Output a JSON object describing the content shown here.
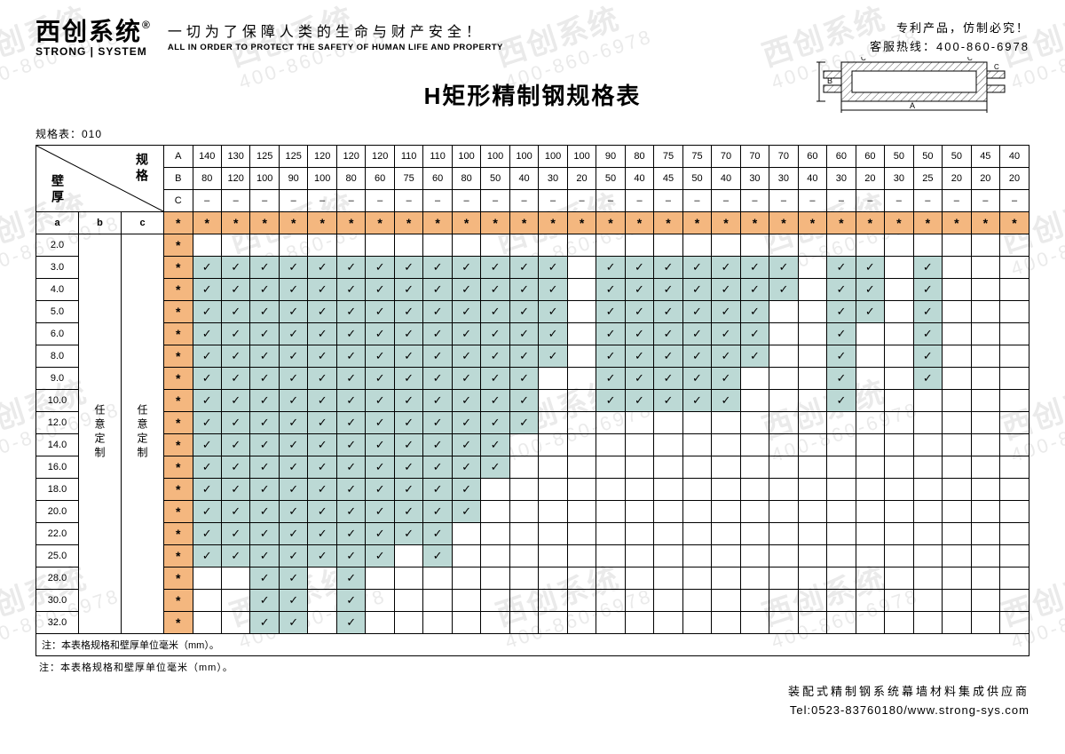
{
  "watermark": {
    "line1": "西创系统",
    "line2": "400-860-6978"
  },
  "header": {
    "brand_cn": "西创系统",
    "brand_reg": "®",
    "brand_en": "STRONG | SYSTEM",
    "slogan_cn": "一切为了保障人类的生命与财产安全！",
    "slogan_en": "ALL IN ORDER TO PROTECT THE SAFETY OF HUMAN LIFE AND PROPERTY",
    "right1": "专利产品，仿制必究！",
    "right2": "客服热线：400-860-6978"
  },
  "title": "H矩形精制钢规格表",
  "spec_no": "规格表：010",
  "diagram_labels": {
    "A": "A",
    "B": "B",
    "C": "C"
  },
  "table": {
    "corner_spec": "规格",
    "corner_thk": "壁厚",
    "abc_row_labels": [
      "A",
      "B",
      "C"
    ],
    "abc_col_header": [
      "a",
      "b",
      "c"
    ],
    "b_col_text": "任意定制",
    "c_col_text": "任意定制",
    "A_row": [
      "140",
      "130",
      "125",
      "125",
      "120",
      "120",
      "120",
      "110",
      "110",
      "100",
      "100",
      "100",
      "100",
      "100",
      "90",
      "80",
      "75",
      "75",
      "70",
      "70",
      "70",
      "60",
      "60",
      "60",
      "50",
      "50",
      "50",
      "45",
      "40"
    ],
    "B_row": [
      "80",
      "120",
      "100",
      "90",
      "100",
      "80",
      "60",
      "75",
      "60",
      "80",
      "50",
      "40",
      "30",
      "20",
      "50",
      "40",
      "45",
      "50",
      "40",
      "30",
      "30",
      "40",
      "30",
      "20",
      "30",
      "25",
      "20",
      "20",
      "20"
    ],
    "C_row": [
      "–",
      "–",
      "–",
      "–",
      "–",
      "–",
      "–",
      "–",
      "–",
      "–",
      "–",
      "–",
      "–",
      "–",
      "–",
      "–",
      "–",
      "–",
      "–",
      "–",
      "–",
      "–",
      "–",
      "–",
      "–",
      "–",
      "–",
      "–",
      "–"
    ],
    "thicknesses": [
      "2.0",
      "3.0",
      "4.0",
      "5.0",
      "6.0",
      "8.0",
      "9.0",
      "10.0",
      "12.0",
      "14.0",
      "16.0",
      "18.0",
      "20.0",
      "22.0",
      "25.0",
      "28.0",
      "30.0",
      "32.0"
    ],
    "checks": {
      "3.0": [
        1,
        1,
        1,
        1,
        1,
        1,
        1,
        1,
        1,
        1,
        1,
        1,
        1,
        0,
        1,
        1,
        1,
        1,
        1,
        1,
        1,
        0,
        1,
        1,
        0,
        1,
        0,
        0,
        0
      ],
      "4.0": [
        1,
        1,
        1,
        1,
        1,
        1,
        1,
        1,
        1,
        1,
        1,
        1,
        1,
        0,
        1,
        1,
        1,
        1,
        1,
        1,
        1,
        0,
        1,
        1,
        0,
        1,
        0,
        0,
        0
      ],
      "5.0": [
        1,
        1,
        1,
        1,
        1,
        1,
        1,
        1,
        1,
        1,
        1,
        1,
        1,
        0,
        1,
        1,
        1,
        1,
        1,
        1,
        0,
        0,
        1,
        1,
        0,
        1,
        0,
        0,
        0
      ],
      "6.0": [
        1,
        1,
        1,
        1,
        1,
        1,
        1,
        1,
        1,
        1,
        1,
        1,
        1,
        0,
        1,
        1,
        1,
        1,
        1,
        1,
        0,
        0,
        1,
        0,
        0,
        1,
        0,
        0,
        0
      ],
      "8.0": [
        1,
        1,
        1,
        1,
        1,
        1,
        1,
        1,
        1,
        1,
        1,
        1,
        1,
        0,
        1,
        1,
        1,
        1,
        1,
        1,
        0,
        0,
        1,
        0,
        0,
        1,
        0,
        0,
        0
      ],
      "9.0": [
        1,
        1,
        1,
        1,
        1,
        1,
        1,
        1,
        1,
        1,
        1,
        1,
        0,
        0,
        1,
        1,
        1,
        1,
        1,
        0,
        0,
        0,
        1,
        0,
        0,
        1,
        0,
        0,
        0
      ],
      "10.0": [
        1,
        1,
        1,
        1,
        1,
        1,
        1,
        1,
        1,
        1,
        1,
        1,
        0,
        0,
        1,
        1,
        1,
        1,
        1,
        0,
        0,
        0,
        1,
        0,
        0,
        0,
        0,
        0,
        0
      ],
      "12.0": [
        1,
        1,
        1,
        1,
        1,
        1,
        1,
        1,
        1,
        1,
        1,
        1,
        0,
        0,
        0,
        0,
        0,
        0,
        0,
        0,
        0,
        0,
        0,
        0,
        0,
        0,
        0,
        0,
        0
      ],
      "14.0": [
        1,
        1,
        1,
        1,
        1,
        1,
        1,
        1,
        1,
        1,
        1,
        0,
        0,
        0,
        0,
        0,
        0,
        0,
        0,
        0,
        0,
        0,
        0,
        0,
        0,
        0,
        0,
        0,
        0
      ],
      "16.0": [
        1,
        1,
        1,
        1,
        1,
        1,
        1,
        1,
        1,
        1,
        1,
        0,
        0,
        0,
        0,
        0,
        0,
        0,
        0,
        0,
        0,
        0,
        0,
        0,
        0,
        0,
        0,
        0,
        0
      ],
      "18.0": [
        1,
        1,
        1,
        1,
        1,
        1,
        1,
        1,
        1,
        1,
        0,
        0,
        0,
        0,
        0,
        0,
        0,
        0,
        0,
        0,
        0,
        0,
        0,
        0,
        0,
        0,
        0,
        0,
        0
      ],
      "20.0": [
        1,
        1,
        1,
        1,
        1,
        1,
        1,
        1,
        1,
        1,
        0,
        0,
        0,
        0,
        0,
        0,
        0,
        0,
        0,
        0,
        0,
        0,
        0,
        0,
        0,
        0,
        0,
        0,
        0
      ],
      "22.0": [
        1,
        1,
        1,
        1,
        1,
        1,
        1,
        1,
        1,
        0,
        0,
        0,
        0,
        0,
        0,
        0,
        0,
        0,
        0,
        0,
        0,
        0,
        0,
        0,
        0,
        0,
        0,
        0,
        0
      ],
      "25.0": [
        1,
        1,
        1,
        1,
        1,
        1,
        1,
        0,
        1,
        0,
        0,
        0,
        0,
        0,
        0,
        0,
        0,
        0,
        0,
        0,
        0,
        0,
        0,
        0,
        0,
        0,
        0,
        0,
        0
      ],
      "28.0": [
        0,
        0,
        1,
        1,
        0,
        1,
        0,
        0,
        0,
        0,
        0,
        0,
        0,
        0,
        0,
        0,
        0,
        0,
        0,
        0,
        0,
        0,
        0,
        0,
        0,
        0,
        0,
        0,
        0
      ],
      "30.0": [
        0,
        0,
        1,
        1,
        0,
        1,
        0,
        0,
        0,
        0,
        0,
        0,
        0,
        0,
        0,
        0,
        0,
        0,
        0,
        0,
        0,
        0,
        0,
        0,
        0,
        0,
        0,
        0,
        0
      ],
      "32.0": [
        0,
        0,
        1,
        1,
        0,
        1,
        0,
        0,
        0,
        0,
        0,
        0,
        0,
        0,
        0,
        0,
        0,
        0,
        0,
        0,
        0,
        0,
        0,
        0,
        0,
        0,
        0,
        0,
        0
      ]
    }
  },
  "note": "注：本表格规格和壁厚单位毫米（mm）。",
  "footer": {
    "f1": "装配式精制钢系统幕墙材料集成供应商",
    "f2": "Tel:0523-83760180/www.strong-sys.com"
  },
  "colors": {
    "orange": "#f4b77f",
    "teal": "#bcd9d5",
    "watermark": "#d9d9d9",
    "border": "#000000",
    "bg": "#ffffff"
  }
}
